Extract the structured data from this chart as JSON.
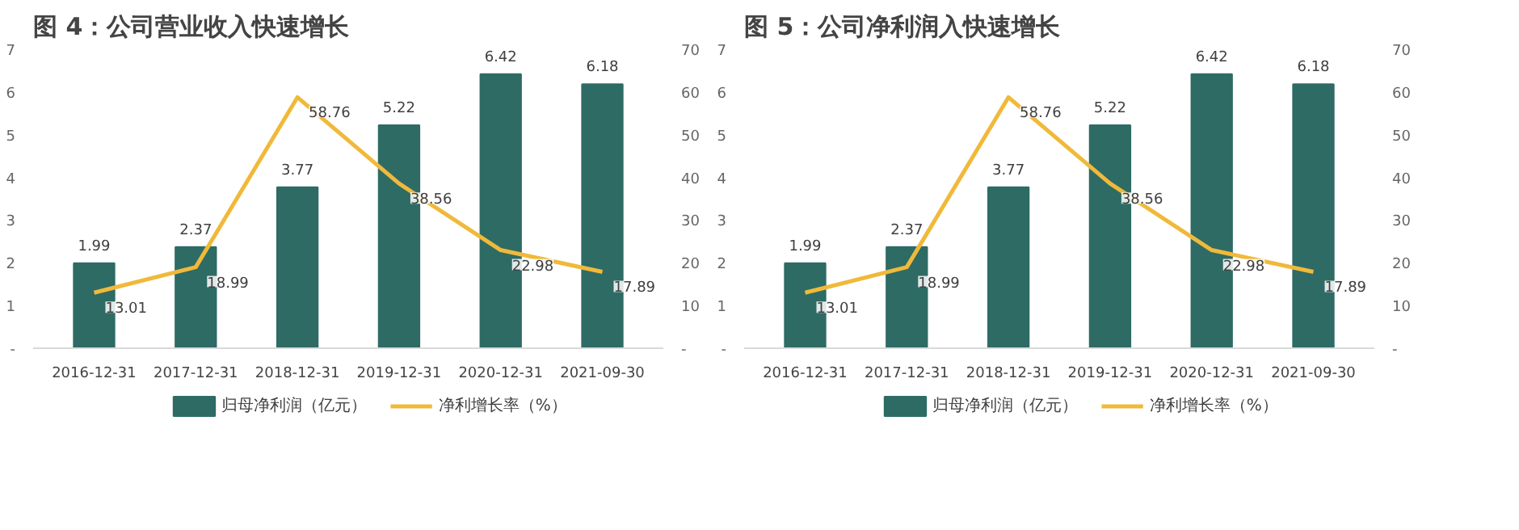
{
  "chart_data": [
    {
      "type": "bar",
      "title": "图 4：公司营业收入快速增长",
      "categories": [
        "2016-12-31",
        "2017-12-31",
        "2018-12-31",
        "2019-12-31",
        "2020-12-31",
        "2021-09-30"
      ],
      "series": [
        {
          "name": "归母净利润（亿元）",
          "type": "bar",
          "color": "#2e6b65",
          "values": [
            1.99,
            2.37,
            3.77,
            5.22,
            6.42,
            6.18
          ]
        },
        {
          "name": "净利增长率（%）",
          "type": "line",
          "axis": "y2",
          "color": "#f0b93a",
          "values": [
            13.01,
            18.99,
            58.76,
            38.56,
            22.98,
            17.89
          ]
        }
      ],
      "ylim": [
        0,
        7
      ],
      "yticks": [
        {
          "value": 0,
          "label": "-"
        },
        1,
        2,
        3,
        4,
        5,
        6,
        7
      ],
      "y2lim": [
        0,
        70
      ],
      "y2ticks": [
        {
          "value": 0,
          "label": "-"
        },
        10,
        20,
        30,
        40,
        50,
        60,
        70
      ],
      "data_labels": true,
      "legend": "bottom",
      "grid": false,
      "marker": "none",
      "line_style": "solid"
    },
    {
      "type": "bar",
      "title": "图 5：公司净利润入快速增长",
      "categories": [
        "2016-12-31",
        "2017-12-31",
        "2018-12-31",
        "2019-12-31",
        "2020-12-31",
        "2021-09-30"
      ],
      "series": [
        {
          "name": "归母净利润（亿元）",
          "type": "bar",
          "color": "#2e6b65",
          "values": [
            1.99,
            2.37,
            3.77,
            5.22,
            6.42,
            6.18
          ]
        },
        {
          "name": "净利增长率（%）",
          "type": "line",
          "axis": "y2",
          "color": "#f0b93a",
          "values": [
            13.01,
            18.99,
            58.76,
            38.56,
            22.98,
            17.89
          ]
        }
      ],
      "ylim": [
        0,
        7
      ],
      "yticks": [
        {
          "value": 0,
          "label": "-"
        },
        1,
        2,
        3,
        4,
        5,
        6,
        7
      ],
      "y2lim": [
        0,
        70
      ],
      "y2ticks": [
        {
          "value": 0,
          "label": "-"
        },
        10,
        20,
        30,
        40,
        50,
        60,
        70
      ],
      "data_labels": true,
      "legend": "bottom",
      "grid": false,
      "marker": "none",
      "line_style": "solid"
    }
  ]
}
